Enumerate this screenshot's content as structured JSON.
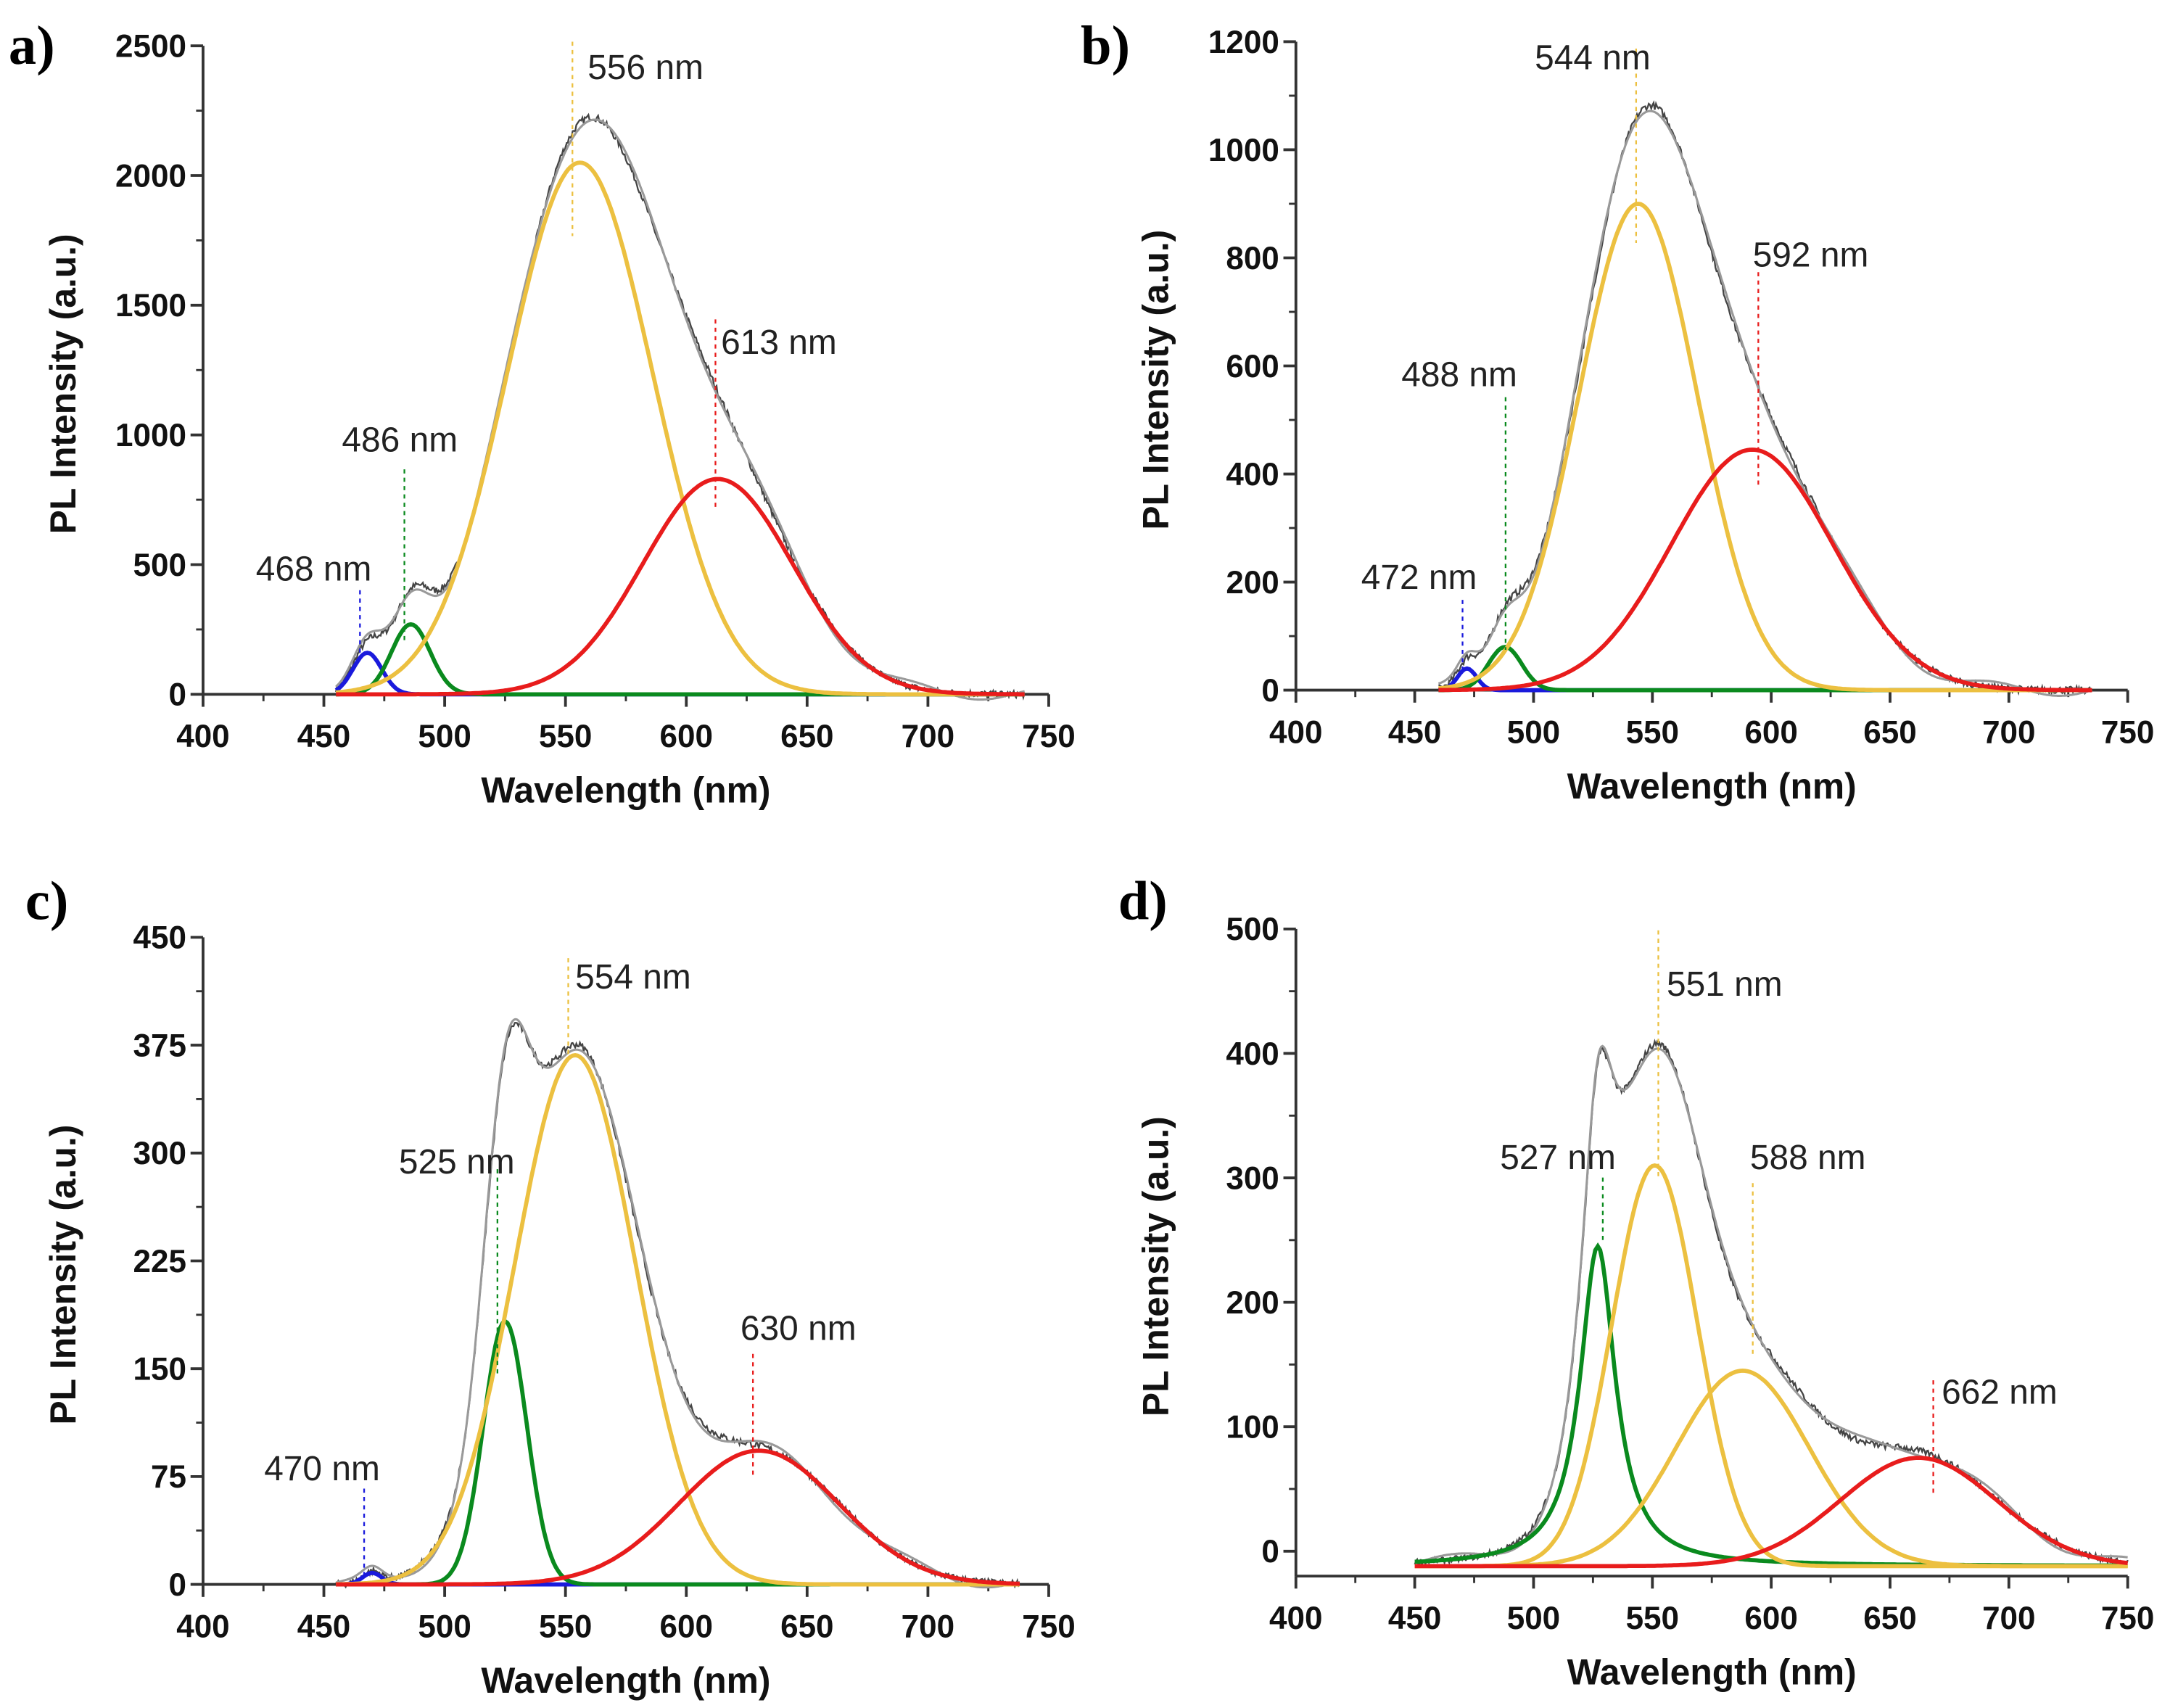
{
  "chart_data": [
    {
      "type": "line",
      "panel_label": "a)",
      "xlabel": "Wavelength (nm)",
      "ylabel": "PL Intensity (a.u.)",
      "xlim": [
        400,
        750
      ],
      "ylim": [
        0,
        2500
      ],
      "xticks": [
        "400",
        "450",
        "500",
        "550",
        "600",
        "650",
        "700",
        "750"
      ],
      "yticks": [
        "0",
        "500",
        "1000",
        "1500",
        "2000",
        "2500"
      ],
      "data_range": [
        455,
        740
      ],
      "baseline": 0,
      "components": [
        {
          "name": "468 nm",
          "shape": "gaussian",
          "center": 468,
          "amplitude": 160,
          "width": 6,
          "color": "#1a1adc"
        },
        {
          "name": "486 nm",
          "shape": "gaussian",
          "center": 486,
          "amplitude": 270,
          "width": 8,
          "color": "#0a8a1e"
        },
        {
          "name": "556 nm",
          "shape": "gaussian",
          "center": 556,
          "amplitude": 2050,
          "width": 30,
          "color": "#ecc040"
        },
        {
          "name": "613 nm",
          "shape": "gaussian",
          "center": 613,
          "amplitude": 830,
          "width": 31,
          "color": "#e81c1c"
        }
      ],
      "annotations": [
        "556 nm",
        "613 nm",
        "486 nm",
        "468 nm"
      ]
    },
    {
      "type": "line",
      "panel_label": "b)",
      "xlabel": "Wavelength (nm)",
      "ylabel": "PL Intensity (a.u.)",
      "xlim": [
        400,
        750
      ],
      "ylim": [
        0,
        1200
      ],
      "xticks": [
        "400",
        "450",
        "500",
        "550",
        "600",
        "650",
        "700",
        "750"
      ],
      "yticks": [
        "0",
        "200",
        "400",
        "600",
        "800",
        "1000",
        "1200"
      ],
      "data_range": [
        460,
        735
      ],
      "baseline": 0,
      "components": [
        {
          "name": "472 nm",
          "shape": "gaussian",
          "center": 472,
          "amplitude": 40,
          "width": 4,
          "color": "#1a1adc"
        },
        {
          "name": "488 nm",
          "shape": "gaussian",
          "center": 488,
          "amplitude": 80,
          "width": 7,
          "color": "#0a8a1e"
        },
        {
          "name": "544 nm",
          "shape": "gaussian",
          "center": 544,
          "amplitude": 900,
          "width": 25,
          "color": "#ecc040"
        },
        {
          "name": "592 nm",
          "shape": "gaussian",
          "center": 592,
          "amplitude": 445,
          "width": 34,
          "color": "#e81c1c"
        }
      ],
      "annotations": [
        "544 nm",
        "592 nm",
        "488 nm",
        "472 nm"
      ]
    },
    {
      "type": "line",
      "panel_label": "c)",
      "xlabel": "Wavelength (nm)",
      "ylabel": "PL Intensity (a.u.)",
      "xlim": [
        400,
        750
      ],
      "ylim": [
        0,
        450
      ],
      "xticks": [
        "400",
        "450",
        "500",
        "550",
        "600",
        "650",
        "700",
        "750"
      ],
      "yticks": [
        "0",
        "75",
        "150",
        "225",
        "300",
        "375",
        "450"
      ],
      "data_range": [
        455,
        738
      ],
      "baseline": 0,
      "components": [
        {
          "name": "470 nm",
          "shape": "gaussian",
          "center": 470,
          "amplitude": 8,
          "width": 4,
          "color": "#1a1adc"
        },
        {
          "name": "525 nm",
          "shape": "gaussian",
          "center": 525,
          "amplitude": 183,
          "width": 9,
          "color": "#0a8a1e"
        },
        {
          "name": "554 nm",
          "shape": "gaussian",
          "center": 554,
          "amplitude": 368,
          "width": 25,
          "color": "#ecc040"
        },
        {
          "name": "630 nm",
          "shape": "gaussian",
          "center": 630,
          "amplitude": 93,
          "width": 33,
          "color": "#e81c1c"
        }
      ],
      "annotations": [
        "554 nm",
        "525 nm",
        "630 nm",
        "470 nm"
      ]
    },
    {
      "type": "line",
      "panel_label": "d)",
      "xlabel": "Wavelength (nm)",
      "ylabel": "PL Intensity (a.u.)",
      "xlim": [
        400,
        750
      ],
      "ylim": [
        -20,
        500
      ],
      "xticks": [
        "400",
        "450",
        "500",
        "550",
        "600",
        "650",
        "700",
        "750"
      ],
      "yticks": [
        "0",
        "100",
        "200",
        "300",
        "400",
        "500"
      ],
      "data_range": [
        450,
        750
      ],
      "baseline": -12,
      "components": [
        {
          "name": "527 nm",
          "shape": "lorentzian",
          "center": 527,
          "amplitude": 257,
          "width": 9,
          "color": "#0a8a1e"
        },
        {
          "name": "551 nm",
          "shape": "gaussian",
          "center": 551,
          "amplitude": 322,
          "width": 18,
          "color": "#ecc040"
        },
        {
          "name": "588 nm",
          "shape": "gaussian",
          "center": 588,
          "amplitude": 157,
          "width": 28,
          "color": "#ecc040"
        },
        {
          "name": "662 nm",
          "shape": "gaussian",
          "center": 662,
          "amplitude": 87,
          "width": 33,
          "color": "#e81c1c"
        }
      ],
      "annotations": [
        "551 nm",
        "527 nm",
        "588 nm",
        "662 nm"
      ]
    }
  ]
}
